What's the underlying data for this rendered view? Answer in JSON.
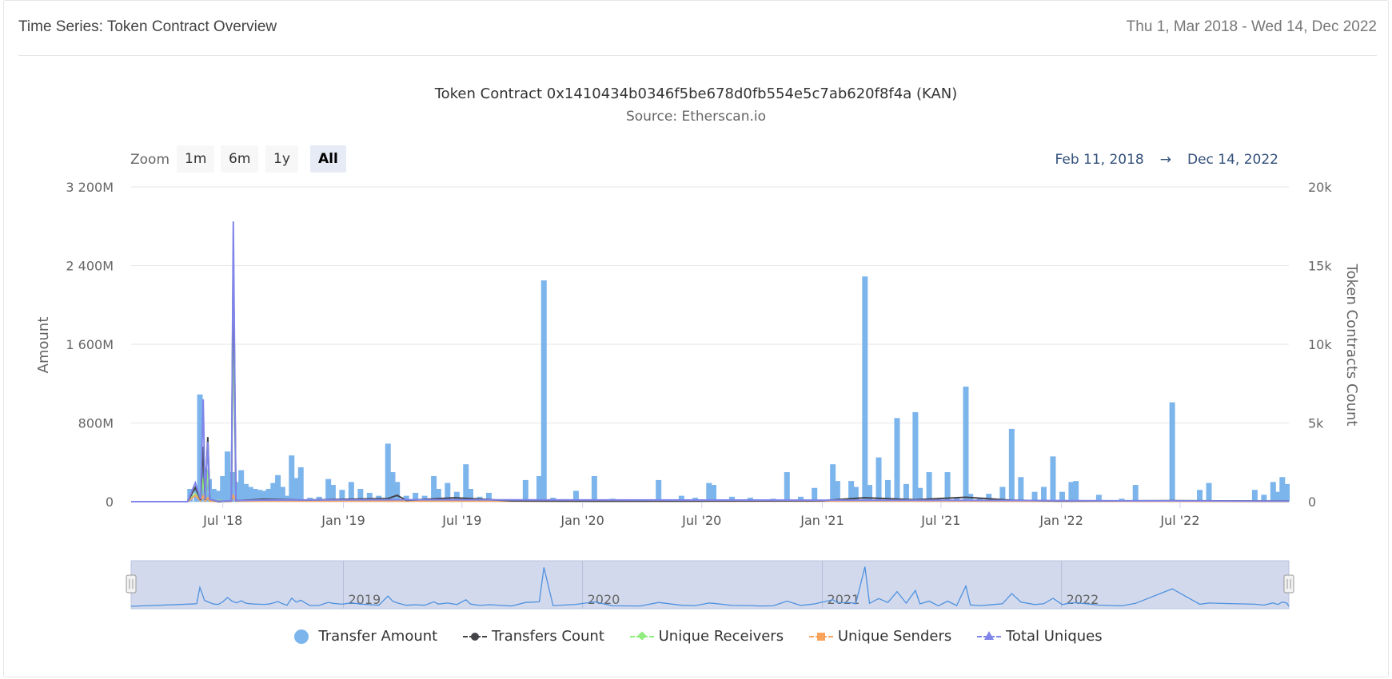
{
  "header": {
    "title": "Time Series: Token Contract Overview",
    "date_range": "Thu 1, Mar 2018 - Wed 14, Dec 2022"
  },
  "zoom": {
    "label": "Zoom",
    "buttons": [
      "1m",
      "6m",
      "1y",
      "All"
    ],
    "active": "All"
  },
  "range": {
    "from": "Feb 11, 2018",
    "arrow": "→",
    "to": "Dec 14, 2022"
  },
  "colors": {
    "transfer_amount": "#7cb5ec",
    "transfers_count": "#434348",
    "unique_receivers": "#90ed7d",
    "unique_senders": "#f7a35c",
    "total_uniques": "#8085e9",
    "navigator_fill": "#d2d9ec"
  },
  "chart_data": {
    "type": "bar",
    "title": "Token Contract 0x1410434b0346f5be678d0fb554e5c7ab620f8f4a (KAN)",
    "subtitle": "Source: Etherscan.io",
    "y_left": {
      "label": "Amount",
      "range": [
        0,
        3200
      ],
      "ticks": [
        "0",
        "800M",
        "1 600M",
        "2 400M",
        "3 200M"
      ],
      "tick_values": [
        0,
        800,
        1600,
        2400,
        3200
      ]
    },
    "y_right": {
      "label": "Token Contracts Count",
      "range": [
        0,
        20000
      ],
      "ticks": [
        "0",
        "5k",
        "10k",
        "15k",
        "20k"
      ],
      "tick_values": [
        0,
        5000,
        10000,
        15000,
        20000
      ]
    },
    "x_range": [
      "2018-02-11",
      "2022-12-14"
    ],
    "x_ticks": [
      {
        "label": "Jul '18",
        "date": "2018-07-01"
      },
      {
        "label": "Jan '19",
        "date": "2019-01-01"
      },
      {
        "label": "Jul '19",
        "date": "2019-07-01"
      },
      {
        "label": "Jan '20",
        "date": "2020-01-01"
      },
      {
        "label": "Jul '20",
        "date": "2020-07-01"
      },
      {
        "label": "Jan '21",
        "date": "2021-01-01"
      },
      {
        "label": "Jul '21",
        "date": "2021-07-01"
      },
      {
        "label": "Jan '22",
        "date": "2022-01-01"
      },
      {
        "label": "Jul '22",
        "date": "2022-07-01"
      }
    ],
    "navigator_labels": [
      {
        "label": "2019",
        "date": "2019-01-01"
      },
      {
        "label": "2020",
        "date": "2020-01-01"
      },
      {
        "label": "2021",
        "date": "2021-01-01"
      },
      {
        "label": "2022",
        "date": "2022-01-01"
      }
    ],
    "legend": [
      "Transfer Amount",
      "Transfers Count",
      "Unique Receivers",
      "Unique Senders",
      "Total Uniques"
    ],
    "grid": true,
    "legend_position": "bottom",
    "series": [
      {
        "name": "Transfer Amount",
        "kind": "column",
        "axis": "left",
        "points": [
          [
            "2018-05-12",
            130
          ],
          [
            "2018-05-22",
            150
          ],
          [
            "2018-05-27",
            1090
          ],
          [
            "2018-06-03",
            340
          ],
          [
            "2018-06-10",
            230
          ],
          [
            "2018-06-17",
            130
          ],
          [
            "2018-06-24",
            110
          ],
          [
            "2018-07-01",
            260
          ],
          [
            "2018-07-08",
            510
          ],
          [
            "2018-07-15",
            300
          ],
          [
            "2018-07-22",
            200
          ],
          [
            "2018-07-29",
            320
          ],
          [
            "2018-08-05",
            180
          ],
          [
            "2018-08-12",
            150
          ],
          [
            "2018-08-19",
            130
          ],
          [
            "2018-08-26",
            120
          ],
          [
            "2018-09-02",
            110
          ],
          [
            "2018-09-09",
            130
          ],
          [
            "2018-09-16",
            190
          ],
          [
            "2018-09-23",
            270
          ],
          [
            "2018-09-30",
            150
          ],
          [
            "2018-10-07",
            60
          ],
          [
            "2018-10-14",
            470
          ],
          [
            "2018-10-21",
            240
          ],
          [
            "2018-10-28",
            350
          ],
          [
            "2018-11-11",
            40
          ],
          [
            "2018-11-25",
            50
          ],
          [
            "2018-12-09",
            230
          ],
          [
            "2018-12-16",
            170
          ],
          [
            "2018-12-30",
            120
          ],
          [
            "2019-01-13",
            200
          ],
          [
            "2019-01-27",
            130
          ],
          [
            "2019-02-10",
            90
          ],
          [
            "2019-02-24",
            60
          ],
          [
            "2019-03-10",
            590
          ],
          [
            "2019-03-17",
            300
          ],
          [
            "2019-03-24",
            200
          ],
          [
            "2019-04-07",
            60
          ],
          [
            "2019-04-21",
            90
          ],
          [
            "2019-05-05",
            60
          ],
          [
            "2019-05-19",
            260
          ],
          [
            "2019-05-26",
            130
          ],
          [
            "2019-06-09",
            190
          ],
          [
            "2019-06-23",
            100
          ],
          [
            "2019-07-07",
            380
          ],
          [
            "2019-07-14",
            130
          ],
          [
            "2019-07-28",
            50
          ],
          [
            "2019-08-11",
            90
          ],
          [
            "2019-09-15",
            20
          ],
          [
            "2019-10-06",
            220
          ],
          [
            "2019-10-27",
            260
          ],
          [
            "2019-11-03",
            2250
          ],
          [
            "2019-11-17",
            40
          ],
          [
            "2019-12-22",
            110
          ],
          [
            "2020-01-19",
            260
          ],
          [
            "2020-02-16",
            30
          ],
          [
            "2020-03-29",
            20
          ],
          [
            "2020-04-26",
            220
          ],
          [
            "2020-05-31",
            60
          ],
          [
            "2020-06-21",
            40
          ],
          [
            "2020-07-12",
            190
          ],
          [
            "2020-07-19",
            170
          ],
          [
            "2020-08-16",
            50
          ],
          [
            "2020-09-13",
            40
          ],
          [
            "2020-09-27",
            20
          ],
          [
            "2020-10-18",
            30
          ],
          [
            "2020-11-08",
            300
          ],
          [
            "2020-11-29",
            50
          ],
          [
            "2020-12-20",
            140
          ],
          [
            "2021-01-17",
            380
          ],
          [
            "2021-01-24",
            210
          ],
          [
            "2021-02-14",
            210
          ],
          [
            "2021-02-21",
            150
          ],
          [
            "2021-03-07",
            2290
          ],
          [
            "2021-03-14",
            170
          ],
          [
            "2021-03-28",
            450
          ],
          [
            "2021-04-11",
            220
          ],
          [
            "2021-04-25",
            850
          ],
          [
            "2021-05-09",
            180
          ],
          [
            "2021-05-23",
            910
          ],
          [
            "2021-05-30",
            140
          ],
          [
            "2021-06-13",
            300
          ],
          [
            "2021-06-27",
            30
          ],
          [
            "2021-07-11",
            300
          ],
          [
            "2021-07-25",
            40
          ],
          [
            "2021-08-08",
            1170
          ],
          [
            "2021-08-15",
            80
          ],
          [
            "2021-08-29",
            40
          ],
          [
            "2021-09-12",
            80
          ],
          [
            "2021-10-03",
            150
          ],
          [
            "2021-10-17",
            740
          ],
          [
            "2021-10-31",
            250
          ],
          [
            "2021-11-21",
            100
          ],
          [
            "2021-12-05",
            150
          ],
          [
            "2021-12-19",
            460
          ],
          [
            "2022-01-02",
            100
          ],
          [
            "2022-01-16",
            200
          ],
          [
            "2022-01-23",
            210
          ],
          [
            "2022-02-27",
            70
          ],
          [
            "2022-04-03",
            30
          ],
          [
            "2022-04-24",
            170
          ],
          [
            "2022-06-19",
            1010
          ],
          [
            "2022-07-31",
            120
          ],
          [
            "2022-08-14",
            190
          ],
          [
            "2022-10-23",
            120
          ],
          [
            "2022-11-06",
            70
          ],
          [
            "2022-11-20",
            200
          ],
          [
            "2022-11-27",
            100
          ],
          [
            "2022-12-04",
            250
          ],
          [
            "2022-12-11",
            180
          ]
        ]
      },
      {
        "name": "Transfers Count",
        "kind": "line",
        "axis": "right",
        "points": [
          [
            "2018-02-11",
            0
          ],
          [
            "2018-05-08",
            0
          ],
          [
            "2018-05-20",
            900
          ],
          [
            "2018-05-28",
            100
          ],
          [
            "2018-06-01",
            3500
          ],
          [
            "2018-06-04",
            100
          ],
          [
            "2018-06-08",
            4100
          ],
          [
            "2018-06-11",
            150
          ],
          [
            "2018-06-24",
            0
          ],
          [
            "2018-07-14",
            50
          ],
          [
            "2018-07-17",
            16000
          ],
          [
            "2018-07-21",
            60
          ],
          [
            "2018-09-01",
            150
          ],
          [
            "2018-11-01",
            100
          ],
          [
            "2019-03-10",
            200
          ],
          [
            "2019-03-24",
            400
          ],
          [
            "2019-04-07",
            80
          ],
          [
            "2019-06-20",
            250
          ],
          [
            "2019-09-15",
            50
          ],
          [
            "2020-01-01",
            30
          ],
          [
            "2020-07-01",
            40
          ],
          [
            "2021-01-01",
            60
          ],
          [
            "2021-03-07",
            250
          ],
          [
            "2021-05-23",
            120
          ],
          [
            "2021-08-08",
            280
          ],
          [
            "2021-10-17",
            90
          ],
          [
            "2022-01-01",
            40
          ],
          [
            "2022-06-19",
            60
          ],
          [
            "2022-12-14",
            40
          ]
        ]
      },
      {
        "name": "Unique Receivers",
        "kind": "line",
        "axis": "right",
        "points": [
          [
            "2018-02-11",
            0
          ],
          [
            "2018-05-08",
            0
          ],
          [
            "2018-05-20",
            500
          ],
          [
            "2018-05-28",
            80
          ],
          [
            "2018-06-01",
            1500
          ],
          [
            "2018-06-04",
            60
          ],
          [
            "2018-06-08",
            2000
          ],
          [
            "2018-06-11",
            100
          ],
          [
            "2018-07-14",
            30
          ],
          [
            "2018-07-17",
            12000
          ],
          [
            "2018-07-21",
            40
          ],
          [
            "2018-09-01",
            60
          ],
          [
            "2019-03-24",
            80
          ],
          [
            "2021-03-07",
            60
          ],
          [
            "2022-12-14",
            20
          ]
        ]
      },
      {
        "name": "Unique Senders",
        "kind": "line",
        "axis": "right",
        "points": [
          [
            "2018-02-11",
            0
          ],
          [
            "2018-05-08",
            0
          ],
          [
            "2018-05-20",
            400
          ],
          [
            "2018-05-28",
            60
          ],
          [
            "2018-06-01",
            350
          ],
          [
            "2018-06-04",
            40
          ],
          [
            "2018-06-08",
            250
          ],
          [
            "2018-06-11",
            40
          ],
          [
            "2018-07-14",
            20
          ],
          [
            "2018-07-17",
            400
          ],
          [
            "2018-07-21",
            30
          ],
          [
            "2018-09-01",
            40
          ],
          [
            "2021-03-07",
            40
          ],
          [
            "2022-12-14",
            15
          ]
        ]
      },
      {
        "name": "Total Uniques",
        "kind": "line",
        "axis": "right",
        "points": [
          [
            "2018-02-11",
            0
          ],
          [
            "2018-05-08",
            0
          ],
          [
            "2018-05-20",
            1200
          ],
          [
            "2018-05-28",
            150
          ],
          [
            "2018-06-01",
            6500
          ],
          [
            "2018-06-04",
            120
          ],
          [
            "2018-06-08",
            3800
          ],
          [
            "2018-06-11",
            150
          ],
          [
            "2018-06-24",
            30
          ],
          [
            "2018-07-14",
            60
          ],
          [
            "2018-07-17",
            17800
          ],
          [
            "2018-07-21",
            70
          ],
          [
            "2018-09-01",
            100
          ],
          [
            "2019-03-24",
            120
          ],
          [
            "2021-03-07",
            90
          ],
          [
            "2021-08-08",
            80
          ],
          [
            "2022-12-14",
            30
          ]
        ]
      }
    ]
  }
}
